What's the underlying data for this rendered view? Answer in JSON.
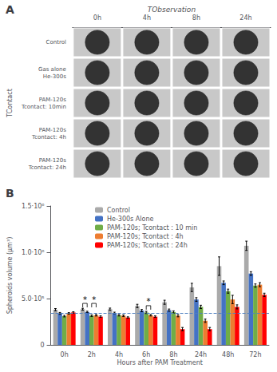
{
  "chart_data": [
    {
      "type": "image_grid",
      "title": "A",
      "xlabel": "TObservation",
      "ylabel": "TContact",
      "categories": [
        "0h",
        "4h",
        "8h",
        "24h"
      ],
      "y_categories": [
        "Control",
        "Gas alone\nHe-300s",
        "PAM-120s\nTcontact: 10min",
        "PAM-120s\nTcontact: 4h",
        "PAM-120s\nTcontact: 24h"
      ],
      "color": "#333333"
    },
    {
      "type": "bar",
      "title": "B",
      "xlabel": "Hours after PAM Treatment",
      "ylabel": "Spheroids volume (μm³)",
      "categories": [
        "0h",
        "2h",
        "4h",
        "6h",
        "8h",
        "24h",
        "48h",
        "72h"
      ],
      "series": [
        {
          "name": "Control",
          "color": "#aaaaaa",
          "values": [
            380000,
            385000,
            385000,
            420000,
            460000,
            620000,
            850000,
            1070000
          ],
          "errors": [
            12000,
            10000,
            12000,
            18000,
            22000,
            45000,
            100000,
            50000
          ]
        },
        {
          "name": "He-300s Alone",
          "color": "#4472C4",
          "values": [
            340000,
            355000,
            345000,
            370000,
            375000,
            490000,
            670000,
            770000
          ],
          "errors": [
            10000,
            8000,
            8000,
            12000,
            12000,
            20000,
            20000,
            20000
          ]
        },
        {
          "name": "PAM-120s; Tcontact : 10 min",
          "color": "#70AD47",
          "values": [
            310000,
            315000,
            320000,
            350000,
            355000,
            410000,
            580000,
            640000
          ],
          "errors": [
            8000,
            8000,
            8000,
            12000,
            12000,
            18000,
            22000,
            18000
          ]
        },
        {
          "name": "PAM-120s; Tcontact : 4h",
          "color": "#ED7D31",
          "values": [
            340000,
            320000,
            315000,
            320000,
            315000,
            260000,
            490000,
            650000
          ],
          "errors": [
            8000,
            8000,
            8000,
            8000,
            12000,
            18000,
            45000,
            22000
          ]
        },
        {
          "name": "PAM-120s; Tcontact : 24h",
          "color": "#FF0000",
          "values": [
            350000,
            305000,
            295000,
            305000,
            170000,
            170000,
            410000,
            540000
          ],
          "errors": [
            8000,
            8000,
            8000,
            8000,
            18000,
            18000,
            22000,
            18000
          ]
        }
      ],
      "ylim": [
        0,
        1500000
      ],
      "yticks": [
        0,
        {
          "value": 500000,
          "label": "5.0·10⁵"
        },
        {
          "value": 1000000,
          "label": "1.0·10⁶"
        },
        {
          "value": 1500000,
          "label": "1.5·10⁶"
        }
      ],
      "reference_line": {
        "y": 340000,
        "color": "#5080C0"
      },
      "annotations": [
        {
          "text": "*",
          "category": "2h",
          "between": [
            "Control",
            "He-300s Alone"
          ],
          "y": 405000
        },
        {
          "text": "*",
          "category": "2h",
          "between": [
            "PAM-120s; Tcontact : 10 min",
            "PAM-120s; Tcontact : 4h"
          ],
          "y": 405000
        },
        {
          "text": "*",
          "category": "6h",
          "between": [
            "PAM-120s; Tcontact : 10 min",
            "PAM-120s; Tcontact : 4h"
          ],
          "y": 380000
        }
      ],
      "legend": "upper left",
      "grid": false
    }
  ]
}
